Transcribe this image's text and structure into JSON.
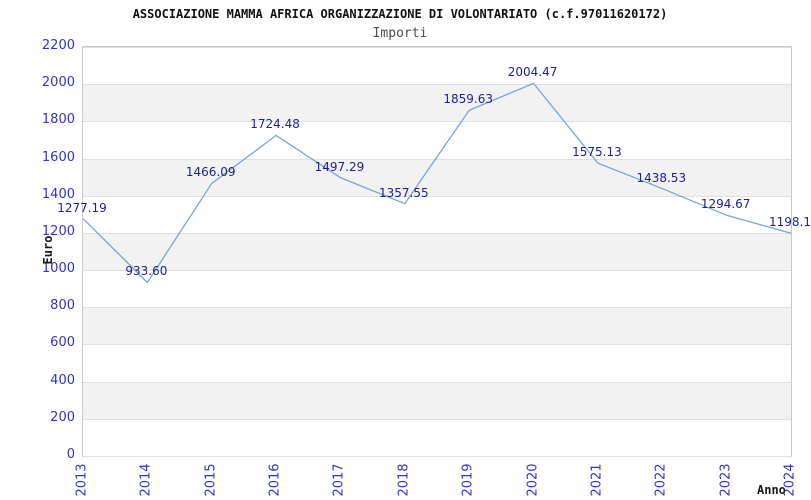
{
  "header": {
    "title": "ASSOCIAZIONE MAMMA AFRICA ORGANIZZAZIONE DI VOLONTARIATO (c.f.97011620172)",
    "subtitle": "Importi"
  },
  "chart_data": {
    "type": "line",
    "title": "ASSOCIAZIONE MAMMA AFRICA ORGANIZZAZIONE DI VOLONTARIATO (c.f.97011620172)",
    "subtitle": "Importi",
    "xlabel": "Anno",
    "ylabel": "Euro",
    "categories": [
      "2013",
      "2014",
      "2015",
      "2016",
      "2017",
      "2018",
      "2019",
      "2020",
      "2021",
      "2022",
      "2023",
      "2024"
    ],
    "series": [
      {
        "name": "Importi",
        "values": [
          1277.19,
          933.6,
          1466.09,
          1724.48,
          1497.29,
          1357.55,
          1859.63,
          2004.47,
          1575.13,
          1438.53,
          1294.67,
          1198.1
        ]
      }
    ],
    "point_labels": [
      "1277.19",
      "933.60",
      "1466.09",
      "1724.48",
      "1497.29",
      "1357.55",
      "1859.63",
      "2004.47",
      "1575.13",
      "1438.53",
      "1294.67",
      "1198.1"
    ],
    "ylim": [
      0,
      2200
    ],
    "ytick_step": 200,
    "yticks": [
      0,
      200,
      400,
      600,
      800,
      1000,
      1200,
      1400,
      1600,
      1800,
      2000,
      2200
    ],
    "grid": true,
    "legend_position": "none",
    "colors": {
      "line": "#76a5da",
      "point_label": "#1e1e96",
      "tick_label": "#3232cd",
      "band": "#f2f2f2",
      "gridline": "#e0e0e0",
      "plot_border": "#c9c9c9",
      "title": "#111111",
      "subtitle": "#4d4d4d",
      "axis_title": "#1a1a1a"
    }
  }
}
